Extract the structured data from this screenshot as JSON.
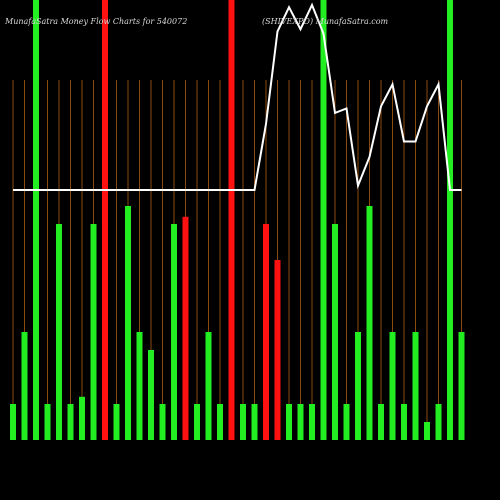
{
  "header": {
    "left": "MunafaSatra  Money Flow  Charts for 540072",
    "right": "(SHIVEXPO) MunafaSatra.com"
  },
  "colors": {
    "background": "#000000",
    "up": "#22ee22",
    "down": "#ff1111",
    "line": "#ffffff",
    "grid": "#8a4a10"
  },
  "chart_data": {
    "type": "bar",
    "categories": [
      "",
      "",
      "",
      "",
      "",
      "",
      "",
      "",
      "",
      "",
      "",
      "",
      "",
      "",
      "",
      "",
      "",
      "",
      "",
      "",
      "",
      "",
      "",
      "",
      "",
      "",
      "",
      "",
      "",
      "",
      "",
      "",
      "",
      "",
      "",
      "",
      "",
      "",
      "",
      ""
    ],
    "values": [
      1,
      3,
      10,
      1,
      6,
      1,
      1.2,
      6,
      10,
      1,
      6.5,
      3,
      2.5,
      1,
      6,
      6.2,
      1,
      3,
      1,
      10,
      1,
      1,
      6,
      5,
      1,
      1,
      1,
      10,
      6,
      1,
      3,
      6.5,
      1,
      3,
      1,
      3,
      0.5,
      1,
      10,
      3
    ],
    "directions": [
      "up",
      "up",
      "up",
      "up",
      "up",
      "up",
      "up",
      "up",
      "down",
      "up",
      "up",
      "up",
      "up",
      "up",
      "up",
      "down",
      "up",
      "up",
      "up",
      "down",
      "up",
      "up",
      "down",
      "down",
      "up",
      "up",
      "up",
      "up",
      "up",
      "up",
      "up",
      "up",
      "up",
      "up",
      "up",
      "up",
      "up",
      "up",
      "up",
      "up"
    ],
    "line_values": [
      -80,
      -80,
      -80,
      -80,
      -80,
      -80,
      -80,
      -80,
      -80,
      -80,
      -80,
      -80,
      -80,
      -80,
      -80,
      -80,
      -80,
      -80,
      -80,
      -80,
      -80,
      -80,
      -50,
      -8,
      3,
      -7,
      4,
      -9,
      -45,
      -43,
      -78,
      -65,
      -42,
      -32,
      -58,
      -58,
      -42,
      -32,
      -80,
      -80
    ],
    "ylim": [
      0,
      10
    ]
  }
}
